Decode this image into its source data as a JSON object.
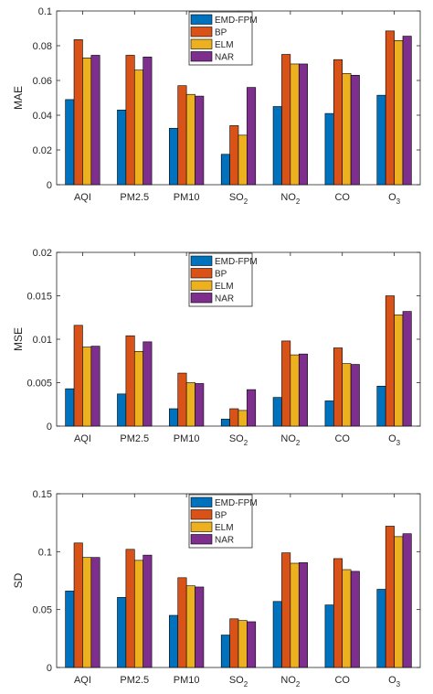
{
  "chart_data": [
    {
      "type": "bar",
      "ylabel": "MAE",
      "ylim": [
        0,
        0.1
      ],
      "yticks": [
        "0",
        "0.02",
        "0.04",
        "0.06",
        "0.08",
        "0.1"
      ],
      "categories": [
        {
          "base": "AQI",
          "sub": ""
        },
        {
          "base": "PM2.5",
          "sub": ""
        },
        {
          "base": "PM10",
          "sub": ""
        },
        {
          "base": "SO",
          "sub": "2"
        },
        {
          "base": "NO",
          "sub": "2"
        },
        {
          "base": "CO",
          "sub": ""
        },
        {
          "base": "O",
          "sub": "3"
        }
      ],
      "series": [
        {
          "name": "EMD-FPM",
          "color": "#0072BD",
          "values": [
            0.049,
            0.043,
            0.0325,
            0.0175,
            0.045,
            0.041,
            0.0515
          ]
        },
        {
          "name": "BP",
          "color": "#D95319",
          "values": [
            0.0835,
            0.0745,
            0.057,
            0.034,
            0.075,
            0.072,
            0.0885
          ]
        },
        {
          "name": "ELM",
          "color": "#EDB120",
          "values": [
            0.073,
            0.066,
            0.052,
            0.0285,
            0.0695,
            0.064,
            0.083
          ]
        },
        {
          "name": "NAR",
          "color": "#7E2F8E",
          "values": [
            0.0745,
            0.0735,
            0.051,
            0.056,
            0.0695,
            0.063,
            0.0855
          ]
        }
      ],
      "legend_position": "top-center"
    },
    {
      "type": "bar",
      "ylabel": "MSE",
      "ylim": [
        0,
        0.02
      ],
      "yticks": [
        "0",
        "0.005",
        "0.01",
        "0.015",
        "0.02"
      ],
      "categories": [
        {
          "base": "AQI",
          "sub": ""
        },
        {
          "base": "PM2.5",
          "sub": ""
        },
        {
          "base": "PM10",
          "sub": ""
        },
        {
          "base": "SO",
          "sub": "2"
        },
        {
          "base": "NO",
          "sub": "2"
        },
        {
          "base": "CO",
          "sub": ""
        },
        {
          "base": "O",
          "sub": "3"
        }
      ],
      "series": [
        {
          "name": "EMD-FPM",
          "color": "#0072BD",
          "values": [
            0.0043,
            0.0037,
            0.002,
            0.0008,
            0.0033,
            0.0029,
            0.0046
          ]
        },
        {
          "name": "BP",
          "color": "#D95319",
          "values": [
            0.0116,
            0.0104,
            0.0061,
            0.002,
            0.0098,
            0.009,
            0.015
          ]
        },
        {
          "name": "ELM",
          "color": "#EDB120",
          "values": [
            0.0091,
            0.0086,
            0.005,
            0.0018,
            0.0082,
            0.0072,
            0.0128
          ]
        },
        {
          "name": "NAR",
          "color": "#7E2F8E",
          "values": [
            0.0092,
            0.0097,
            0.0049,
            0.0042,
            0.0083,
            0.0071,
            0.0132
          ]
        }
      ],
      "legend_position": "top-center"
    },
    {
      "type": "bar",
      "ylabel": "SD",
      "ylim": [
        0,
        0.15
      ],
      "yticks": [
        "0",
        "0.05",
        "0.1",
        "0.15"
      ],
      "categories": [
        {
          "base": "AQI",
          "sub": ""
        },
        {
          "base": "PM2.5",
          "sub": ""
        },
        {
          "base": "PM10",
          "sub": ""
        },
        {
          "base": "SO",
          "sub": "2"
        },
        {
          "base": "NO",
          "sub": "2"
        },
        {
          "base": "CO",
          "sub": ""
        },
        {
          "base": "O",
          "sub": "3"
        }
      ],
      "series": [
        {
          "name": "EMD-FPM",
          "color": "#0072BD",
          "values": [
            0.066,
            0.0605,
            0.045,
            0.028,
            0.057,
            0.054,
            0.0675
          ]
        },
        {
          "name": "BP",
          "color": "#D95319",
          "values": [
            0.1075,
            0.102,
            0.0775,
            0.042,
            0.099,
            0.094,
            0.122
          ]
        },
        {
          "name": "ELM",
          "color": "#EDB120",
          "values": [
            0.095,
            0.0925,
            0.0705,
            0.0405,
            0.09,
            0.0845,
            0.113
          ]
        },
        {
          "name": "NAR",
          "color": "#7E2F8E",
          "values": [
            0.095,
            0.097,
            0.0695,
            0.0395,
            0.0905,
            0.083,
            0.1155
          ]
        }
      ],
      "legend_position": "top-center"
    }
  ]
}
